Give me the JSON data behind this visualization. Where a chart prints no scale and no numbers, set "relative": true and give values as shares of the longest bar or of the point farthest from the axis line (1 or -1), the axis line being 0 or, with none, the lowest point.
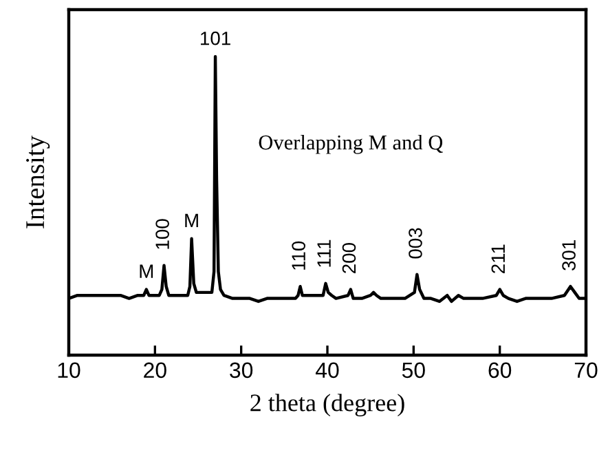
{
  "chart_data": {
    "type": "line",
    "relative": true,
    "xlabel": "2 theta (degree)",
    "ylabel": "Intensity",
    "xlim": [
      10,
      70
    ],
    "xticks": [
      10,
      20,
      30,
      40,
      50,
      60,
      70
    ],
    "grid": false,
    "marker": "none",
    "line_style": "solid",
    "tick_labels": "x",
    "x": [
      10,
      11,
      12,
      13,
      14,
      15,
      16,
      17,
      18,
      18.7,
      19.0,
      19.3,
      20.5,
      20.8,
      21.05,
      21.3,
      21.6,
      23.8,
      24.05,
      24.25,
      24.5,
      24.8,
      26.6,
      26.85,
      27.0,
      27.15,
      27.35,
      27.6,
      28,
      29,
      30,
      31,
      32,
      33,
      34,
      35,
      36.3,
      36.6,
      36.85,
      37.1,
      38,
      39.5,
      39.8,
      40.1,
      40.5,
      41,
      42.4,
      42.7,
      43.0,
      44,
      45.0,
      45.35,
      45.7,
      46.2,
      47,
      48,
      49,
      50.1,
      50.4,
      50.7,
      51.2,
      52,
      53,
      53.9,
      54.4,
      55.2,
      55.8,
      57,
      58,
      59.6,
      60.0,
      60.4,
      61,
      62,
      63,
      64.2,
      65,
      66,
      67.5,
      68.2,
      68.7,
      69.2,
      70
    ],
    "series": [
      {
        "color": "#000000",
        "values": [
          0.19,
          0.2,
          0.2,
          0.2,
          0.2,
          0.2,
          0.2,
          0.19,
          0.2,
          0.2,
          0.22,
          0.2,
          0.2,
          0.22,
          0.3,
          0.23,
          0.2,
          0.2,
          0.23,
          0.39,
          0.24,
          0.21,
          0.21,
          0.28,
          1.0,
          0.59,
          0.28,
          0.22,
          0.2,
          0.19,
          0.19,
          0.19,
          0.18,
          0.19,
          0.19,
          0.19,
          0.19,
          0.2,
          0.23,
          0.2,
          0.2,
          0.2,
          0.24,
          0.21,
          0.2,
          0.19,
          0.2,
          0.22,
          0.19,
          0.19,
          0.2,
          0.21,
          0.2,
          0.19,
          0.19,
          0.19,
          0.19,
          0.21,
          0.27,
          0.22,
          0.19,
          0.19,
          0.18,
          0.2,
          0.18,
          0.2,
          0.19,
          0.19,
          0.19,
          0.2,
          0.22,
          0.2,
          0.19,
          0.18,
          0.19,
          0.19,
          0.19,
          0.19,
          0.2,
          0.23,
          0.21,
          0.19,
          0.19
        ]
      }
    ],
    "annotations": [
      {
        "text": "M",
        "x": 19.0,
        "y": 0.22
      },
      {
        "text": "100",
        "x": 21.05,
        "y": 0.3
      },
      {
        "text": "M",
        "x": 24.25,
        "y": 0.39
      },
      {
        "text": "101",
        "x": 27.0,
        "y": 1.0
      },
      {
        "text": "110",
        "x": 36.85,
        "y": 0.23
      },
      {
        "text": "111",
        "x": 39.8,
        "y": 0.24
      },
      {
        "text": "200",
        "x": 42.7,
        "y": 0.22
      },
      {
        "text": "003",
        "x": 50.4,
        "y": 0.27
      },
      {
        "text": "211",
        "x": 60.0,
        "y": 0.22
      },
      {
        "text": "301",
        "x": 68.2,
        "y": 0.23
      },
      "Overlapping M and Q"
    ]
  }
}
